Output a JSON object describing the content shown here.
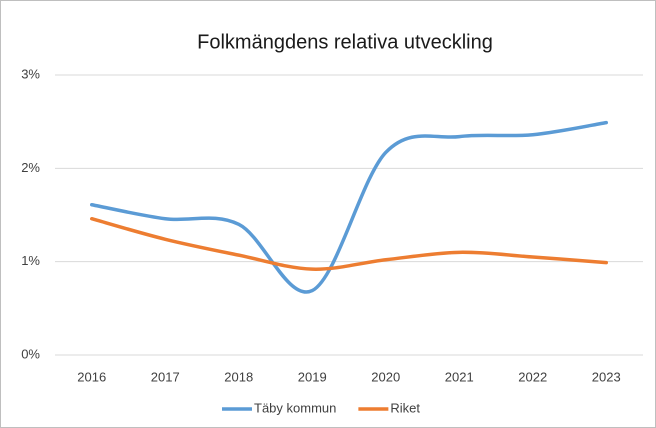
{
  "chart_data": {
    "type": "line",
    "title": "Folkmängdens relativa utveckling",
    "categories": [
      "2016",
      "2017",
      "2018",
      "2019",
      "2020",
      "2021",
      "2022",
      "2023"
    ],
    "series": [
      {
        "name": "Täby kommun",
        "color": "#5b9bd5",
        "values": [
          1.61,
          1.46,
          1.4,
          0.69,
          2.17,
          2.34,
          2.36,
          2.49
        ]
      },
      {
        "name": "Riket",
        "color": "#ed7d31",
        "values": [
          1.46,
          1.24,
          1.07,
          0.92,
          1.02,
          1.1,
          1.05,
          0.99
        ]
      }
    ],
    "ylim": [
      0,
      3
    ],
    "yticks": [
      {
        "value": 0,
        "label": "0%"
      },
      {
        "value": 1,
        "label": "1%"
      },
      {
        "value": 2,
        "label": "2%"
      },
      {
        "value": 3,
        "label": "3%"
      }
    ],
    "grid": true,
    "smooth": true,
    "legend": "bottom"
  }
}
